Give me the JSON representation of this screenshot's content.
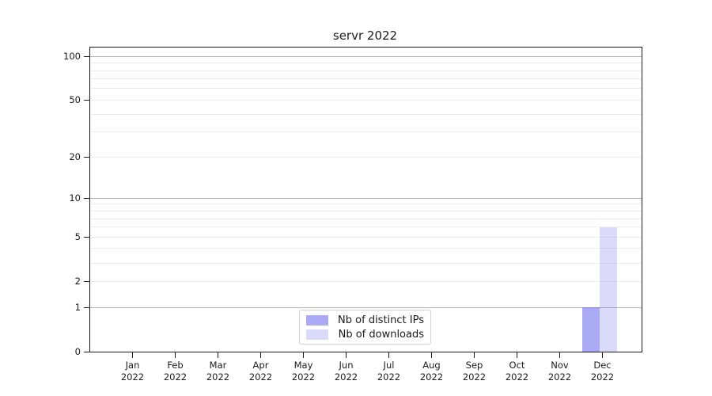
{
  "title": "servr 2022",
  "legend": {
    "items": [
      {
        "label": "Nb of distinct IPs",
        "color": "rgba(85,85,235,0.5)"
      },
      {
        "label": "Nb of downloads",
        "color": "rgba(85,85,235,0.22)"
      }
    ]
  },
  "chart_data": {
    "type": "bar",
    "title": "servr 2022",
    "categories": [
      "Jan 2022",
      "Feb 2022",
      "Mar 2022",
      "Apr 2022",
      "May 2022",
      "Jun 2022",
      "Jul 2022",
      "Aug 2022",
      "Sep 2022",
      "Oct 2022",
      "Nov 2022",
      "Dec 2022"
    ],
    "series": [
      {
        "name": "Nb of distinct IPs",
        "color": "rgba(85,85,235,0.5)",
        "values": [
          0,
          0,
          0,
          0,
          0,
          0,
          0,
          0,
          0,
          0,
          0,
          1
        ]
      },
      {
        "name": "Nb of downloads",
        "color": "rgba(85,85,235,0.22)",
        "values": [
          0,
          0,
          0,
          0,
          0,
          0,
          0,
          0,
          0,
          0,
          0,
          6
        ]
      }
    ],
    "xlabel": "",
    "ylabel": "",
    "y_scale": "log1p",
    "ylim": [
      0,
      115
    ],
    "y_ticks": [
      0,
      1,
      2,
      5,
      10,
      20,
      50,
      100
    ],
    "y_major_gridlines": [
      1,
      10,
      100
    ],
    "y_minor_gridlines": [
      2,
      3,
      4,
      5,
      6,
      7,
      8,
      9,
      20,
      30,
      40,
      50,
      60,
      70,
      80,
      90
    ],
    "grid": true,
    "legend_position": "bottom-center"
  }
}
